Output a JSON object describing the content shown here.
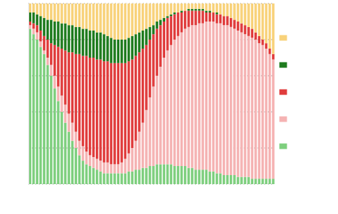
{
  "chart_data": {
    "type": "bar",
    "stacked": true,
    "grid": true,
    "tick_labels": false,
    "legend": "right",
    "ylim": [
      0,
      100
    ],
    "yticks": [
      0,
      20,
      40,
      60,
      80,
      100
    ],
    "categories": [
      null,
      null,
      null,
      null,
      null,
      null,
      null,
      null,
      null,
      null,
      null,
      null,
      null,
      null,
      null,
      null,
      null,
      null,
      null,
      null,
      null,
      null,
      null,
      null,
      null,
      null,
      null,
      null,
      null,
      null,
      null,
      null,
      null,
      null,
      null,
      null,
      null,
      null,
      null,
      null,
      null,
      null,
      null,
      null,
      null,
      null,
      null,
      null,
      null,
      null,
      null,
      null,
      null,
      null,
      null,
      null,
      null,
      null,
      null,
      null,
      null,
      null,
      null,
      null,
      null,
      null,
      null,
      null,
      null,
      null
    ],
    "series": [
      {
        "color": "#7ecf7e",
        "values": [
          86,
          83,
          80,
          76,
          72,
          66,
          60,
          53,
          46,
          40,
          34,
          29,
          24,
          20,
          16,
          13,
          11,
          10,
          9,
          8,
          7,
          6,
          6,
          6,
          6,
          6,
          6,
          6,
          7,
          7,
          8,
          8,
          9,
          9,
          10,
          10,
          11,
          11,
          11,
          11,
          11,
          10,
          10,
          10,
          10,
          9,
          9,
          8,
          8,
          8,
          8,
          7,
          7,
          6,
          6,
          5,
          5,
          5,
          5,
          4,
          4,
          4,
          4,
          3,
          3,
          3,
          3,
          3,
          3,
          3
        ]
      },
      {
        "color": "#f5b3b3",
        "values": [
          2,
          3,
          4,
          3,
          2,
          4,
          6,
          7,
          8,
          9,
          10,
          10,
          10,
          9,
          8,
          8,
          7,
          6,
          6,
          6,
          6,
          6,
          6,
          5,
          5,
          5,
          6,
          8,
          10,
          13,
          16,
          21,
          25,
          32,
          38,
          44,
          49,
          54,
          59,
          63,
          66,
          70,
          72,
          74,
          76,
          78,
          79,
          80,
          81,
          81,
          82,
          83,
          83,
          83,
          83,
          83,
          83,
          82,
          81,
          81,
          80,
          79,
          78,
          78,
          77,
          75,
          74,
          72,
          69,
          66
        ]
      },
      {
        "color": "#e03c3c",
        "values": [
          2,
          3,
          4,
          6,
          8,
          10,
          12,
          17,
          22,
          26,
          30,
          34,
          39,
          43,
          48,
          50,
          53,
          54,
          55,
          55,
          56,
          56,
          56,
          56,
          56,
          56,
          55,
          53,
          51,
          49,
          47,
          44,
          41,
          36,
          32,
          29,
          26,
          23,
          20,
          18,
          16,
          14,
          13,
          11,
          10,
          9,
          8,
          8,
          7,
          7,
          5,
          5,
          5,
          5,
          5,
          5,
          5,
          5,
          5,
          5,
          5,
          5,
          5,
          5,
          4,
          4,
          3,
          3,
          3,
          3
        ]
      },
      {
        "color": "#1e7b1e",
        "values": [
          5,
          6,
          6,
          8,
          10,
          11,
          13,
          13,
          14,
          14,
          15,
          15,
          15,
          15,
          15,
          15,
          15,
          15,
          15,
          15,
          15,
          15,
          14,
          14,
          13,
          13,
          13,
          13,
          13,
          13,
          12,
          11,
          10,
          9,
          7,
          5,
          4,
          3,
          2,
          1,
          1,
          1,
          0,
          1,
          0,
          1,
          1,
          1,
          1,
          1,
          1,
          1,
          0,
          1,
          0,
          0,
          0,
          0,
          0,
          0,
          0,
          0,
          0,
          0,
          0,
          0,
          0,
          0,
          0,
          0
        ]
      },
      {
        "color": "#f8d27a",
        "values": [
          5,
          5,
          6,
          7,
          8,
          9,
          9,
          10,
          10,
          11,
          11,
          12,
          12,
          13,
          13,
          14,
          14,
          15,
          15,
          16,
          16,
          17,
          18,
          19,
          20,
          20,
          20,
          20,
          19,
          18,
          17,
          16,
          15,
          14,
          13,
          12,
          10,
          9,
          8,
          7,
          6,
          5,
          5,
          4,
          4,
          3,
          3,
          3,
          3,
          3,
          4,
          4,
          5,
          5,
          6,
          7,
          7,
          8,
          9,
          10,
          11,
          12,
          13,
          14,
          16,
          18,
          20,
          22,
          25,
          28
        ]
      }
    ]
  }
}
